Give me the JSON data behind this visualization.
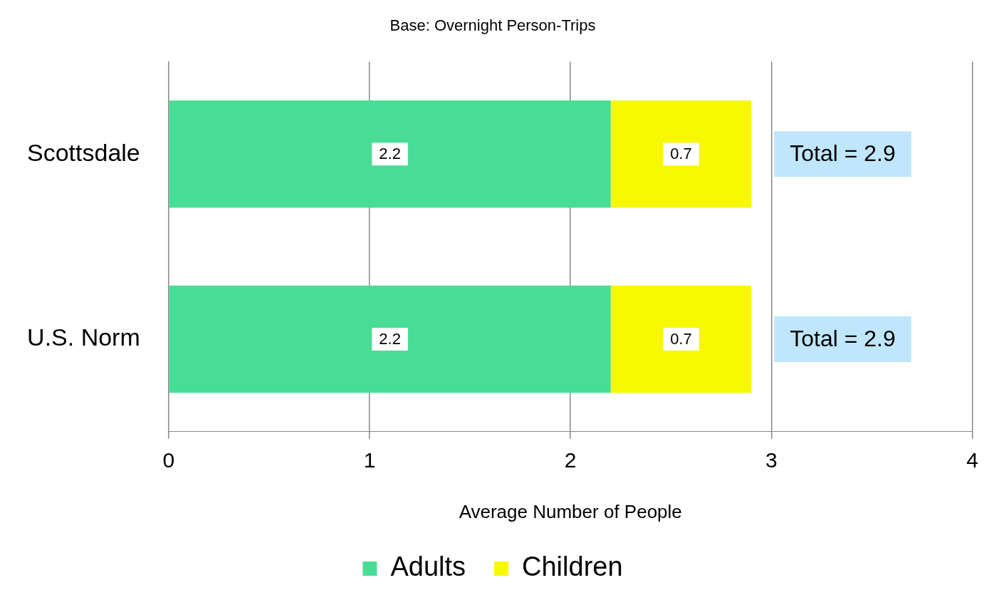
{
  "chart_data": {
    "type": "bar",
    "orientation": "horizontal",
    "stacked": true,
    "title": "Base: Overnight Person-Trips",
    "xlabel": "Average Number of People",
    "categories": [
      "Scottsdale",
      "U.S. Norm"
    ],
    "series": [
      {
        "name": "Adults",
        "color": "#48dd95",
        "values": [
          2.2,
          2.2
        ]
      },
      {
        "name": "Children",
        "color": "#f8f800",
        "values": [
          0.7,
          0.7
        ]
      }
    ],
    "xlim": [
      0,
      4
    ],
    "xticks": [
      0,
      1,
      2,
      3,
      4
    ],
    "grid": "x",
    "legend": "bottom",
    "data_labels": true,
    "totals": [
      "Total = 2.9",
      "Total = 2.9"
    ]
  }
}
